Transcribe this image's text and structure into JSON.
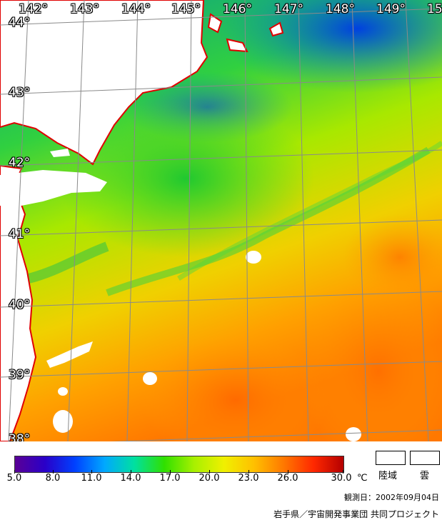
{
  "map": {
    "lon_labels": [
      "142°",
      "143°",
      "144°",
      "145°",
      "146°",
      "147°",
      "148°",
      "149°",
      "15"
    ],
    "lat_labels": [
      "44°",
      "43°",
      "42°",
      "41°",
      "40°",
      "39°",
      "38°"
    ],
    "grid": true,
    "colors": {
      "land": "#ffffff",
      "coastline": "#e00000",
      "grid": "#8a8a8a"
    }
  },
  "legend": {
    "scale_ticks": [
      "5.0",
      "8.0",
      "11.0",
      "14.0",
      "17.0",
      "20.0",
      "23.0",
      "26.0",
      "30.0"
    ],
    "unit": "℃",
    "land_label": "陸域",
    "cloud_label": "雲",
    "observation_date": "観測日：2002年09月04日",
    "credit": "岩手県／宇宙開発事業団 共同プロジェクト",
    "colormap": [
      "#5a0096",
      "#2a00c8",
      "#0040ff",
      "#00a8ff",
      "#00e0a0",
      "#30e000",
      "#a8f000",
      "#f0f000",
      "#ffc000",
      "#ff7800",
      "#ff2800",
      "#b40000"
    ]
  }
}
